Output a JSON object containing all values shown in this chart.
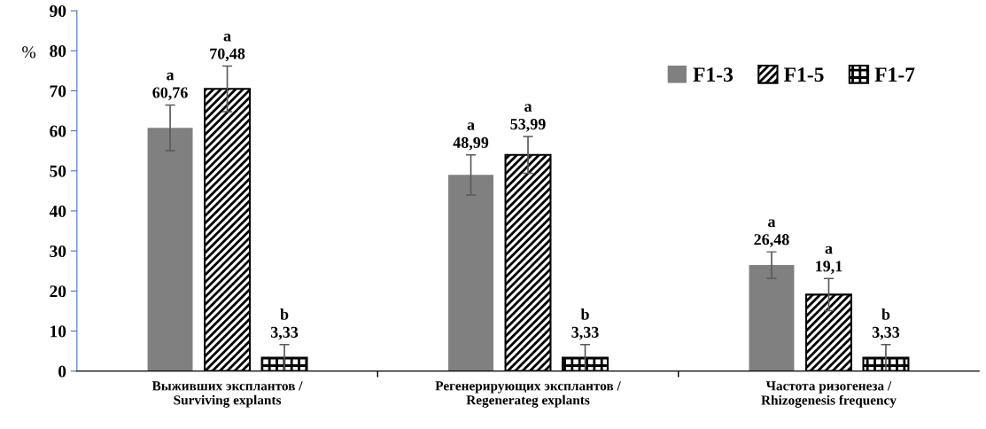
{
  "chart_data": {
    "type": "bar",
    "ylabel": "%",
    "categories": [
      "Выживших эксплантов /\nSurviving explants",
      "Регенерирующих эксплантов /\nRegenerateg explants",
      "Частота ризогенеза /\nRhizogenesis frequency"
    ],
    "series": [
      {
        "name": "F1-3",
        "color": "#808080",
        "values": [
          60.76,
          48.99,
          26.48
        ],
        "errors": [
          5.7,
          5,
          3.3
        ],
        "value_labels": [
          "a\n60,76",
          "a\n48,99",
          "a\n26,48"
        ]
      },
      {
        "name": "F1-5",
        "color": "#000000",
        "values": [
          70.48,
          53.99,
          19.1
        ],
        "errors": [
          5.7,
          4.6,
          4
        ],
        "value_labels": [
          "a\n70,48",
          "a\n53,99",
          "a\n19,1"
        ]
      },
      {
        "name": "F1-7",
        "color": "#000000",
        "values": [
          3.33,
          3.33,
          3.33
        ],
        "errors": [
          3.3,
          3.3,
          3.3
        ],
        "value_labels": [
          "b\n3,33",
          "b\n3,33",
          "b\n3,33"
        ]
      }
    ],
    "ylim": [
      0,
      90
    ],
    "yticks": [
      0,
      10,
      20,
      30,
      40,
      50,
      60,
      70,
      80,
      90
    ],
    "grid": false,
    "legend": "top right"
  }
}
